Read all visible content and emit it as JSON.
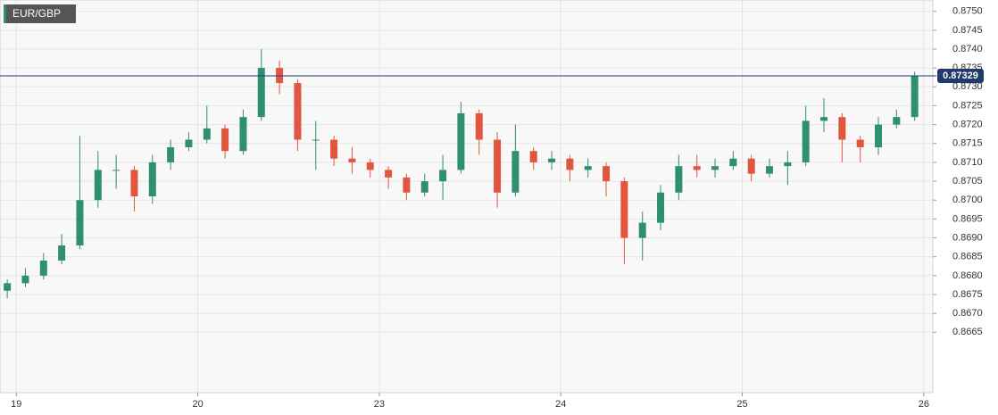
{
  "chart_data": {
    "type": "candlestick",
    "title": "EUR/GBP",
    "xlim": [
      -0.09,
      5.05
    ],
    "ylim": [
      0.8649,
      0.8753
    ],
    "xticks": [
      {
        "value": 0,
        "label": "19"
      },
      {
        "value": 1,
        "label": "20"
      },
      {
        "value": 2,
        "label": "23"
      },
      {
        "value": 3,
        "label": "24"
      },
      {
        "value": 4,
        "label": "25"
      },
      {
        "value": 5,
        "label": "26"
      }
    ],
    "yticks": [
      0.8665,
      {
        "value": 0.867,
        "label": "0.8670"
      },
      0.8675,
      {
        "value": 0.868,
        "label": "0.8680"
      },
      0.8685,
      {
        "value": 0.869,
        "label": "0.8690"
      },
      0.8695,
      {
        "value": 0.87,
        "label": "0.8700"
      },
      0.8705,
      {
        "value": 0.871,
        "label": "0.8710"
      },
      0.8715,
      {
        "value": 0.872,
        "label": "0.8720"
      },
      0.8725,
      {
        "value": 0.873,
        "label": "0.8730"
      },
      0.8735,
      {
        "value": 0.874,
        "label": "0.8740"
      },
      0.8745,
      {
        "value": 0.875,
        "label": "0.8750"
      }
    ],
    "grid": true,
    "current_price": 0.87329,
    "up_color": "#2f8f6f",
    "down_color": "#e0563f",
    "price_line_color": "#1f3a6b",
    "series": [
      {
        "x": [
          -0.05,
          0.05,
          0.15,
          0.25,
          0.35,
          0.45,
          0.55,
          0.65,
          0.75,
          0.85,
          0.95,
          1.05,
          1.15,
          1.25,
          1.35,
          1.45,
          1.55,
          1.65,
          1.75,
          1.85,
          1.95,
          2.05,
          2.15,
          2.25,
          2.35,
          2.45,
          2.55,
          2.65,
          2.75,
          2.85,
          2.95,
          3.05,
          3.15,
          3.25,
          3.35,
          3.45,
          3.55,
          3.65,
          3.75,
          3.85,
          3.95,
          4.05,
          4.15,
          4.25,
          4.35,
          4.45,
          4.55,
          4.65,
          4.75,
          4.85,
          4.95
        ],
        "open": [
          0.8676,
          0.8678,
          0.868,
          0.8684,
          0.8688,
          0.87,
          0.8708,
          0.8708,
          0.8701,
          0.871,
          0.8714,
          0.8716,
          0.8719,
          0.8713,
          0.8722,
          0.8735,
          0.8731,
          0.8716,
          0.8716,
          0.8711,
          0.871,
          0.8708,
          0.8706,
          0.8702,
          0.8705,
          0.8708,
          0.8723,
          0.8716,
          0.8702,
          0.8713,
          0.871,
          0.8711,
          0.8708,
          0.8709,
          0.8705,
          0.869,
          0.8694,
          0.8702,
          0.8709,
          0.8708,
          0.8709,
          0.8711,
          0.8707,
          0.8709,
          0.871,
          0.8721,
          0.8722,
          0.8716,
          0.8714,
          0.872,
          0.8722
        ],
        "high": [
          0.8679,
          0.8682,
          0.8686,
          0.8691,
          0.8717,
          0.8713,
          0.8712,
          0.8709,
          0.8712,
          0.8716,
          0.8718,
          0.8725,
          0.872,
          0.8724,
          0.874,
          0.8737,
          0.8732,
          0.8721,
          0.8717,
          0.8714,
          0.8711,
          0.8709,
          0.8707,
          0.8707,
          0.8712,
          0.8726,
          0.8724,
          0.8718,
          0.872,
          0.8714,
          0.8713,
          0.8712,
          0.8711,
          0.871,
          0.8706,
          0.8697,
          0.8704,
          0.8712,
          0.8712,
          0.8711,
          0.8713,
          0.8712,
          0.8711,
          0.8713,
          0.8725,
          0.8727,
          0.8723,
          0.8717,
          0.8722,
          0.8724,
          0.8734
        ],
        "low": [
          0.8674,
          0.8677,
          0.8679,
          0.8683,
          0.8687,
          0.8698,
          0.8703,
          0.8697,
          0.8699,
          0.8708,
          0.8713,
          0.8715,
          0.8711,
          0.8712,
          0.8721,
          0.8728,
          0.8713,
          0.8708,
          0.8709,
          0.8707,
          0.8706,
          0.8703,
          0.87,
          0.8701,
          0.87,
          0.8707,
          0.8712,
          0.8698,
          0.8701,
          0.8708,
          0.8708,
          0.8705,
          0.8706,
          0.8701,
          0.8683,
          0.8684,
          0.8692,
          0.87,
          0.8706,
          0.8706,
          0.8708,
          0.8705,
          0.8706,
          0.8704,
          0.8709,
          0.8718,
          0.871,
          0.871,
          0.8712,
          0.8719,
          0.8721
        ],
        "close": [
          0.8678,
          0.868,
          0.8684,
          0.8688,
          0.87,
          0.8708,
          0.8708,
          0.8701,
          0.871,
          0.8714,
          0.8716,
          0.8719,
          0.8713,
          0.8722,
          0.8735,
          0.8731,
          0.8716,
          0.8716,
          0.8711,
          0.871,
          0.8708,
          0.8706,
          0.8702,
          0.8705,
          0.8708,
          0.8723,
          0.8716,
          0.8702,
          0.8713,
          0.871,
          0.8711,
          0.8708,
          0.8709,
          0.8705,
          0.869,
          0.8694,
          0.8702,
          0.8709,
          0.8708,
          0.8709,
          0.8711,
          0.8707,
          0.8709,
          0.871,
          0.8721,
          0.8722,
          0.8716,
          0.8714,
          0.872,
          0.8722,
          0.8733
        ]
      }
    ]
  }
}
